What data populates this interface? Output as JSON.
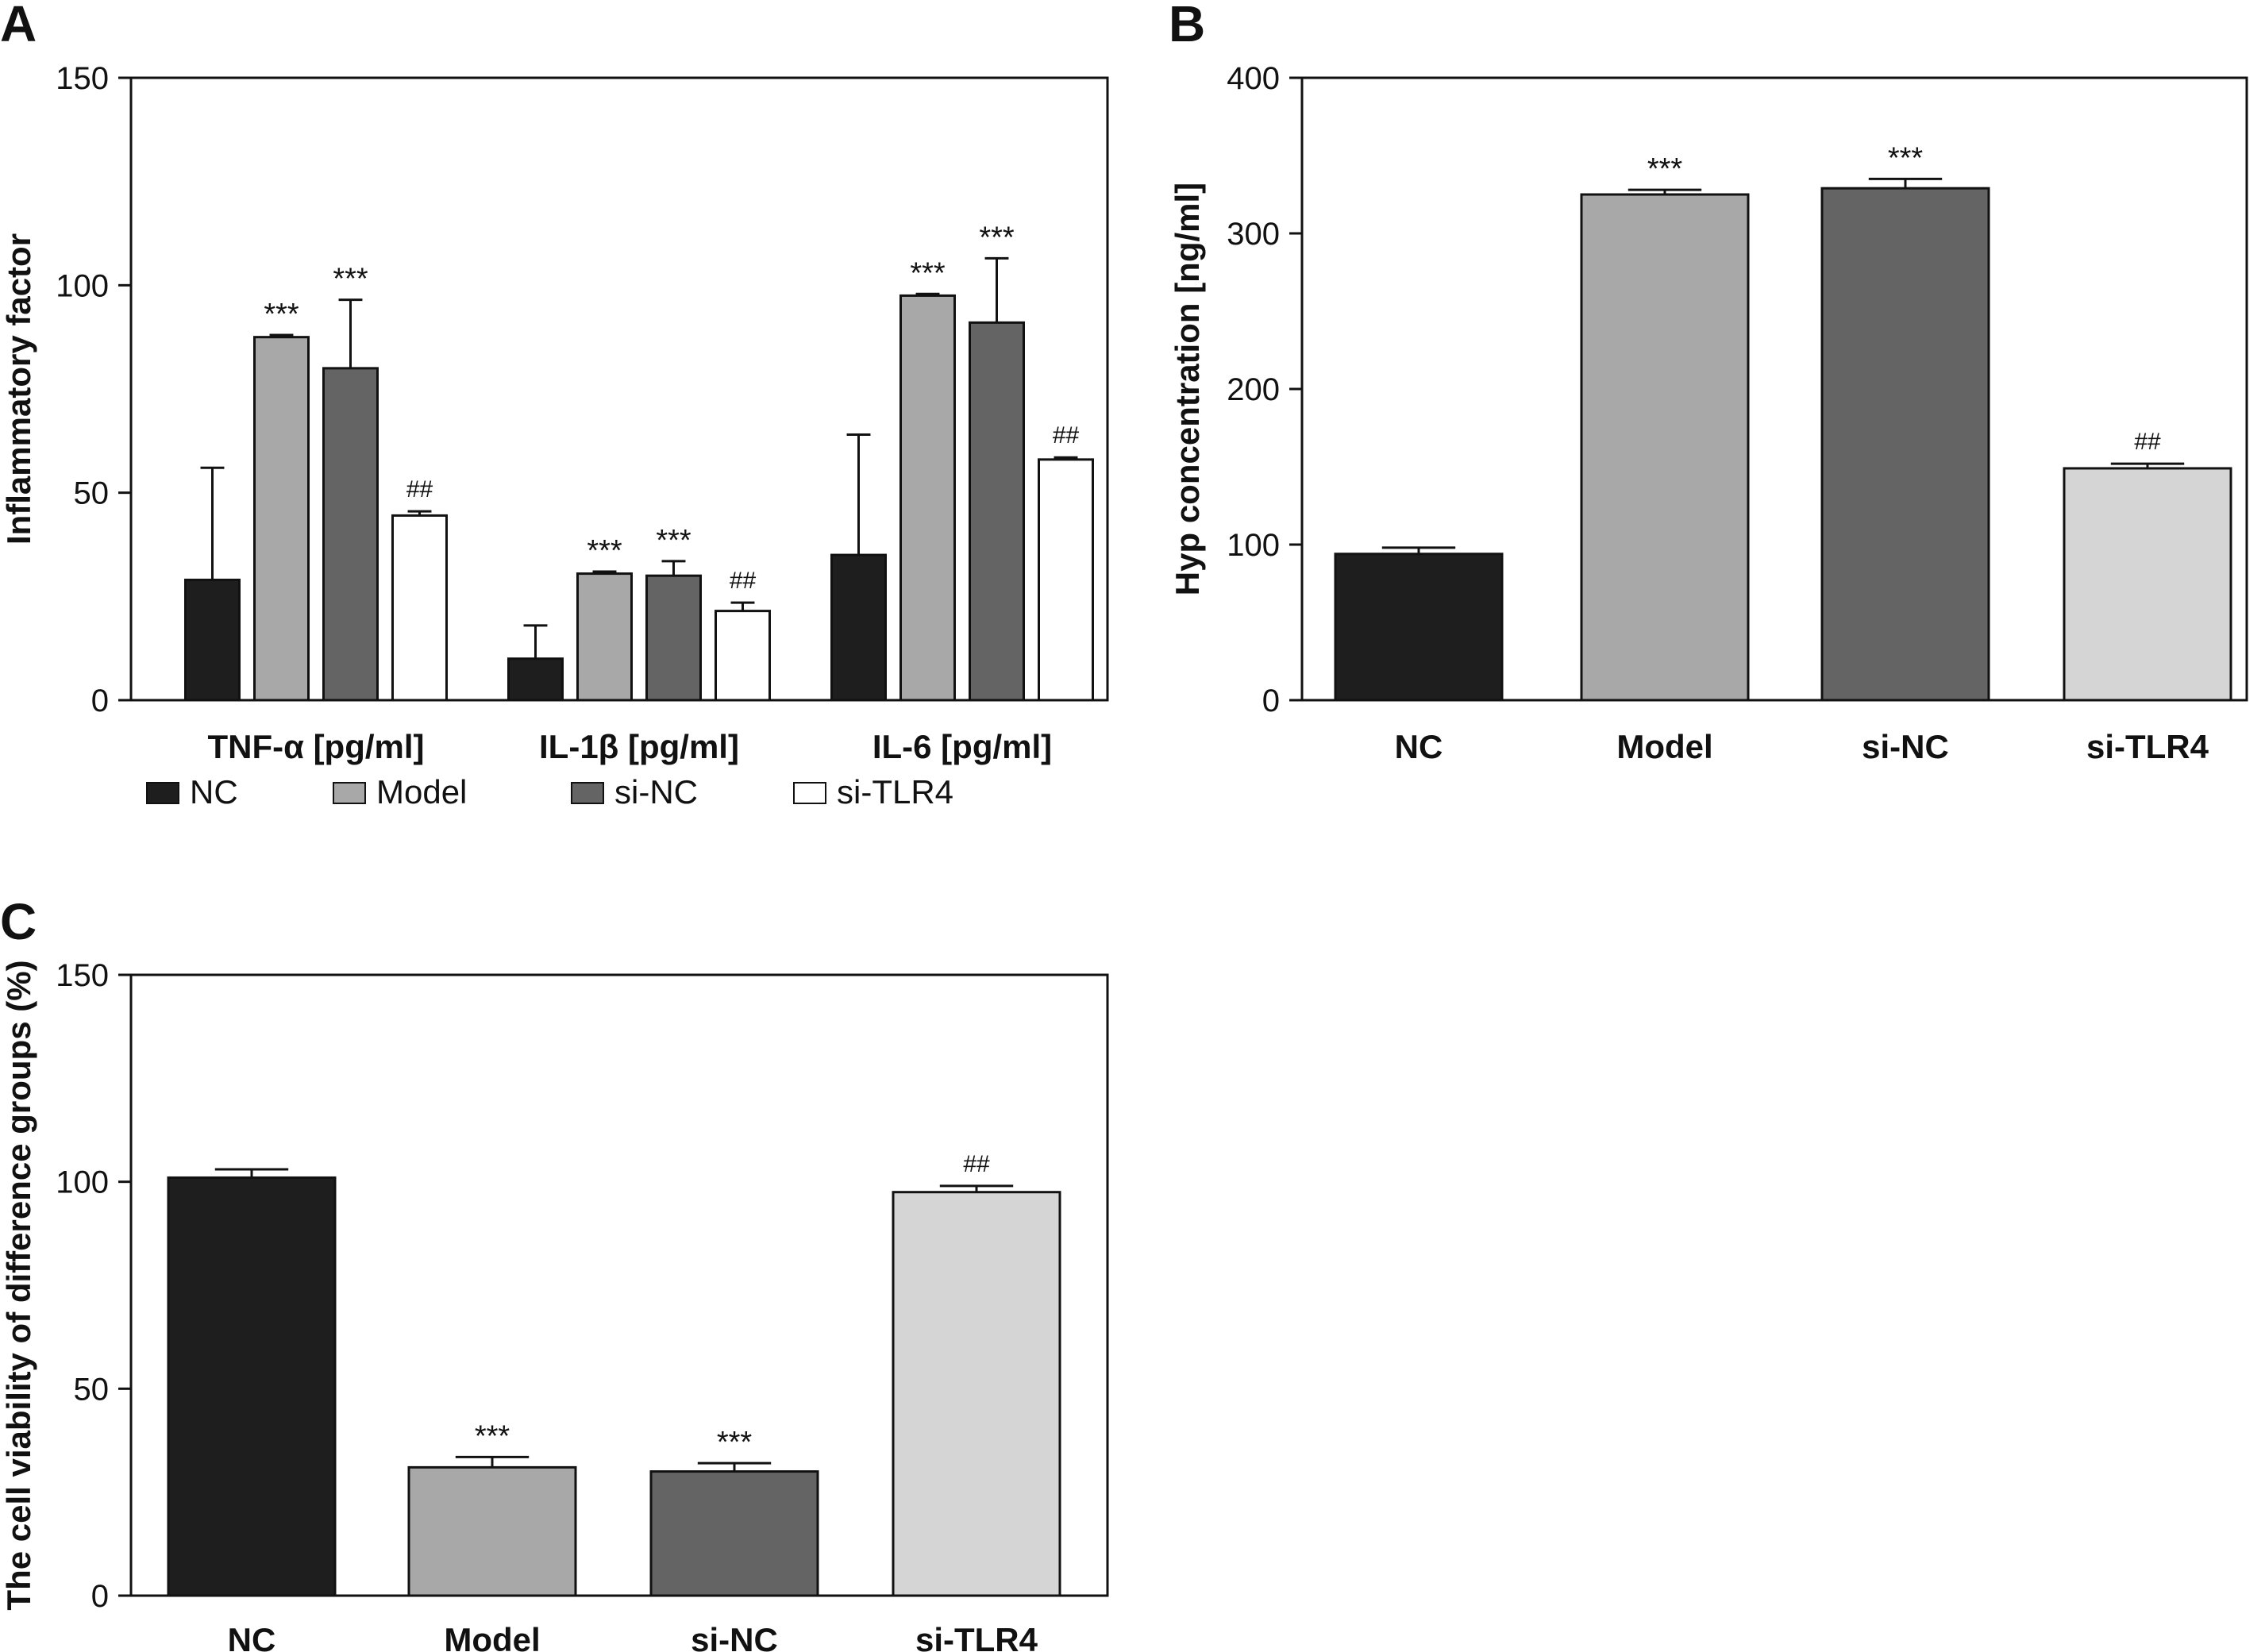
{
  "chart_data": [
    {
      "panel": "A",
      "type": "bar",
      "ylabel": "Inflammatory factor",
      "xlabel": "",
      "ylim": [
        0,
        150
      ],
      "yticks": [
        0,
        50,
        100,
        150
      ],
      "categories": [
        "TNF-α [pg/ml]",
        "IL-1β [pg/ml]",
        "IL-6 [pg/ml]"
      ],
      "series": [
        {
          "name": "NC",
          "color": "#1e1e1e",
          "values": [
            29,
            10,
            35
          ],
          "errors": [
            27,
            8,
            29
          ],
          "annotations": [
            "",
            "",
            ""
          ]
        },
        {
          "name": "Model",
          "color": "#a8a8a8",
          "values": [
            87.5,
            30.5,
            97.5
          ],
          "errors": [
            0.5,
            0.5,
            0.4
          ],
          "annotations": [
            "***",
            "***",
            "***"
          ]
        },
        {
          "name": "si-NC",
          "color": "#646464",
          "values": [
            80,
            30,
            91
          ],
          "errors": [
            16.5,
            3.5,
            15.5
          ],
          "annotations": [
            "***",
            "***",
            "***"
          ]
        },
        {
          "name": "si-TLR4",
          "color": "#ffffff",
          "values": [
            44.5,
            21.5,
            58
          ],
          "errors": [
            1,
            2,
            0.5
          ],
          "annotations": [
            "##",
            "##",
            "##"
          ]
        }
      ],
      "legend": {
        "position": "bottom"
      }
    },
    {
      "panel": "B",
      "type": "bar",
      "ylabel": "Hyp concentration [ng/ml]",
      "xlabel": "",
      "ylim": [
        0,
        400
      ],
      "yticks": [
        0,
        100,
        200,
        300,
        400
      ],
      "categories": [
        "NC",
        "Model",
        "si-NC",
        "si-TLR4"
      ],
      "values": [
        94,
        325,
        329,
        149
      ],
      "errors": [
        4,
        3,
        6,
        3
      ],
      "colors": [
        "#1e1e1e",
        "#a8a8a8",
        "#646464",
        "#d5d5d5"
      ],
      "annotations": [
        "",
        "***",
        "***",
        "##"
      ]
    },
    {
      "panel": "C",
      "type": "bar",
      "ylabel": "The cell viability of difference groups (%)",
      "xlabel": "",
      "ylim": [
        0,
        150
      ],
      "yticks": [
        0,
        50,
        100,
        150
      ],
      "categories": [
        "NC",
        "Model",
        "si-NC",
        "si-TLR4"
      ],
      "values": [
        101,
        31,
        30,
        97.5
      ],
      "errors": [
        2,
        2.5,
        2,
        1.5
      ],
      "colors": [
        "#1e1e1e",
        "#a8a8a8",
        "#646464",
        "#d5d5d5"
      ],
      "annotations": [
        "",
        "***",
        "***",
        "##"
      ]
    }
  ]
}
